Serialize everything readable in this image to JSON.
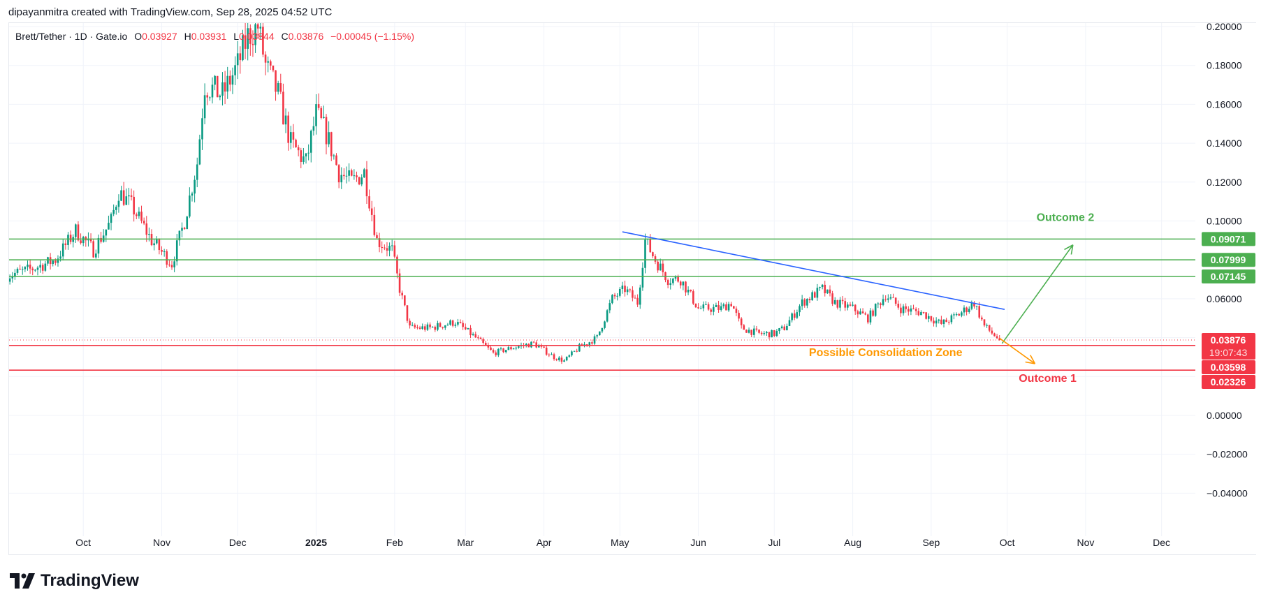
{
  "header": {
    "credit": "dipayanmitra created with TradingView.com, Sep 28, 2025 04:52 UTC"
  },
  "legend": {
    "symbol": "Brett/Tether · 1D · Gate.io",
    "o_label": "O",
    "o": "0.03927",
    "h_label": "H",
    "h": "0.03931",
    "l_label": "L",
    "l": "0.03844",
    "c_label": "C",
    "c": "0.03876",
    "change": "−0.00045 (−1.15%)"
  },
  "brand": {
    "name": "TradingView",
    "logo_icon": "tradingview-logo-icon"
  },
  "colors": {
    "up": "#089981",
    "down": "#f23645",
    "support": "#f23645",
    "resistance": "#4caf50",
    "trendline": "#2962ff",
    "outcome2": "#4caf50",
    "outcome1": "#f23645",
    "zone": "#ff9800",
    "grid": "#f0f3fa"
  },
  "chart_data": {
    "type": "candlestick",
    "interval": "1D",
    "x_start": "2024-09-01",
    "x_end": "2025-09-28",
    "xlim": [
      "2024-08-29",
      "2025-12-31"
    ],
    "ylim": [
      -0.055,
      0.2
    ],
    "grid": true,
    "x_ticks": [
      {
        "date": "2024-10-01",
        "label": "Oct"
      },
      {
        "date": "2024-11-01",
        "label": "Nov"
      },
      {
        "date": "2024-12-01",
        "label": "Dec"
      },
      {
        "date": "2025-01-01",
        "label": "2025",
        "bold": true
      },
      {
        "date": "2025-02-01",
        "label": "Feb"
      },
      {
        "date": "2025-03-01",
        "label": "Mar"
      },
      {
        "date": "2025-04-01",
        "label": "Apr"
      },
      {
        "date": "2025-05-01",
        "label": "May"
      },
      {
        "date": "2025-06-01",
        "label": "Jun"
      },
      {
        "date": "2025-07-01",
        "label": "Jul"
      },
      {
        "date": "2025-08-01",
        "label": "Aug"
      },
      {
        "date": "2025-09-01",
        "label": "Sep"
      },
      {
        "date": "2025-10-01",
        "label": "Oct"
      },
      {
        "date": "2025-11-01",
        "label": "Nov"
      },
      {
        "date": "2025-12-01",
        "label": "Dec"
      }
    ],
    "y_ticks": [
      {
        "value": 0.2,
        "label": "0.20000"
      },
      {
        "value": 0.18,
        "label": "0.18000"
      },
      {
        "value": 0.16,
        "label": "0.16000"
      },
      {
        "value": 0.14,
        "label": "0.14000"
      },
      {
        "value": 0.12,
        "label": "0.12000"
      },
      {
        "value": 0.1,
        "label": "0.10000"
      },
      {
        "value": 0.06,
        "label": "0.06000"
      },
      {
        "value": 0.0,
        "label": "0.00000"
      },
      {
        "value": -0.02,
        "label": "−0.02000"
      },
      {
        "value": -0.04,
        "label": "−0.04000"
      }
    ],
    "key_closes": [
      [
        "2024-09-01",
        0.072
      ],
      [
        "2024-09-10",
        0.075
      ],
      [
        "2024-09-20",
        0.08
      ],
      [
        "2024-09-28",
        0.095
      ],
      [
        "2024-10-05",
        0.085
      ],
      [
        "2024-10-12",
        0.1
      ],
      [
        "2024-10-15",
        0.115
      ],
      [
        "2024-10-20",
        0.108
      ],
      [
        "2024-10-28",
        0.09
      ],
      [
        "2024-11-05",
        0.078
      ],
      [
        "2024-11-10",
        0.1
      ],
      [
        "2024-11-15",
        0.13
      ],
      [
        "2024-11-18",
        0.17
      ],
      [
        "2024-11-25",
        0.165
      ],
      [
        "2024-12-01",
        0.18
      ],
      [
        "2024-12-05",
        0.195
      ],
      [
        "2024-12-09",
        0.2
      ],
      [
        "2024-12-12",
        0.18
      ],
      [
        "2024-12-17",
        0.165
      ],
      [
        "2024-12-22",
        0.14
      ],
      [
        "2024-12-28",
        0.13
      ],
      [
        "2025-01-01",
        0.155
      ],
      [
        "2025-01-05",
        0.145
      ],
      [
        "2025-01-10",
        0.125
      ],
      [
        "2025-01-15",
        0.12
      ],
      [
        "2025-01-20",
        0.125
      ],
      [
        "2025-01-25",
        0.09
      ],
      [
        "2025-01-31",
        0.085
      ],
      [
        "2025-02-03",
        0.065
      ],
      [
        "2025-02-07",
        0.045
      ],
      [
        "2025-02-15",
        0.045
      ],
      [
        "2025-02-25",
        0.048
      ],
      [
        "2025-03-05",
        0.04
      ],
      [
        "2025-03-12",
        0.032
      ],
      [
        "2025-03-20",
        0.035
      ],
      [
        "2025-03-28",
        0.037
      ],
      [
        "2025-04-05",
        0.03
      ],
      [
        "2025-04-09",
        0.028
      ],
      [
        "2025-04-15",
        0.035
      ],
      [
        "2025-04-22",
        0.04
      ],
      [
        "2025-04-28",
        0.06
      ],
      [
        "2025-05-03",
        0.065
      ],
      [
        "2025-05-08",
        0.058
      ],
      [
        "2025-05-11",
        0.09
      ],
      [
        "2025-05-15",
        0.08
      ],
      [
        "2025-05-20",
        0.07
      ],
      [
        "2025-05-25",
        0.07
      ],
      [
        "2025-06-01",
        0.055
      ],
      [
        "2025-06-10",
        0.055
      ],
      [
        "2025-06-14",
        0.058
      ],
      [
        "2025-06-18",
        0.045
      ],
      [
        "2025-06-25",
        0.042
      ],
      [
        "2025-07-01",
        0.042
      ],
      [
        "2025-07-05",
        0.045
      ],
      [
        "2025-07-12",
        0.058
      ],
      [
        "2025-07-20",
        0.065
      ],
      [
        "2025-07-25",
        0.058
      ],
      [
        "2025-08-01",
        0.055
      ],
      [
        "2025-08-07",
        0.05
      ],
      [
        "2025-08-14",
        0.062
      ],
      [
        "2025-08-20",
        0.055
      ],
      [
        "2025-08-28",
        0.053
      ],
      [
        "2025-09-05",
        0.047
      ],
      [
        "2025-09-12",
        0.052
      ],
      [
        "2025-09-18",
        0.058
      ],
      [
        "2025-09-22",
        0.046
      ],
      [
        "2025-09-28",
        0.03876
      ]
    ],
    "levels": [
      {
        "value": 0.09071,
        "label": "0.09071",
        "color": "#4caf50"
      },
      {
        "value": 0.07999,
        "label": "0.07999",
        "color": "#4caf50"
      },
      {
        "value": 0.07145,
        "label": "0.07145",
        "color": "#4caf50"
      },
      {
        "value": 0.03598,
        "label": "0.03598",
        "color": "#f23645"
      },
      {
        "value": 0.02326,
        "label": "0.02326",
        "color": "#f23645"
      }
    ],
    "last_price": {
      "value": 0.03876,
      "label": "0.03876",
      "countdown": "19:07:43"
    },
    "trendline": {
      "from": [
        "2025-05-02",
        0.0944
      ],
      "to": [
        "2025-09-30",
        0.0545
      ]
    },
    "arrows": [
      {
        "name": "outcome-2-arrow",
        "from": [
          "2025-09-29",
          0.037
        ],
        "to": [
          "2025-10-27",
          0.0877
        ],
        "color": "#4caf50"
      },
      {
        "name": "outcome-1-arrow",
        "from": [
          "2025-09-28",
          0.0397
        ],
        "to": [
          "2025-10-12",
          0.0266
        ],
        "color": "#ff9800"
      }
    ],
    "annotations": [
      {
        "text": "Outcome 2",
        "at": [
          "2025-10-24",
          0.1
        ],
        "color": "#4caf50"
      },
      {
        "text": "Possible Consolidation Zone",
        "at": [
          "2025-08-14",
          0.0305
        ],
        "color": "#ff9800"
      },
      {
        "text": "Outcome 1",
        "at": [
          "2025-10-17",
          0.0172
        ],
        "color": "#f23645"
      }
    ]
  }
}
